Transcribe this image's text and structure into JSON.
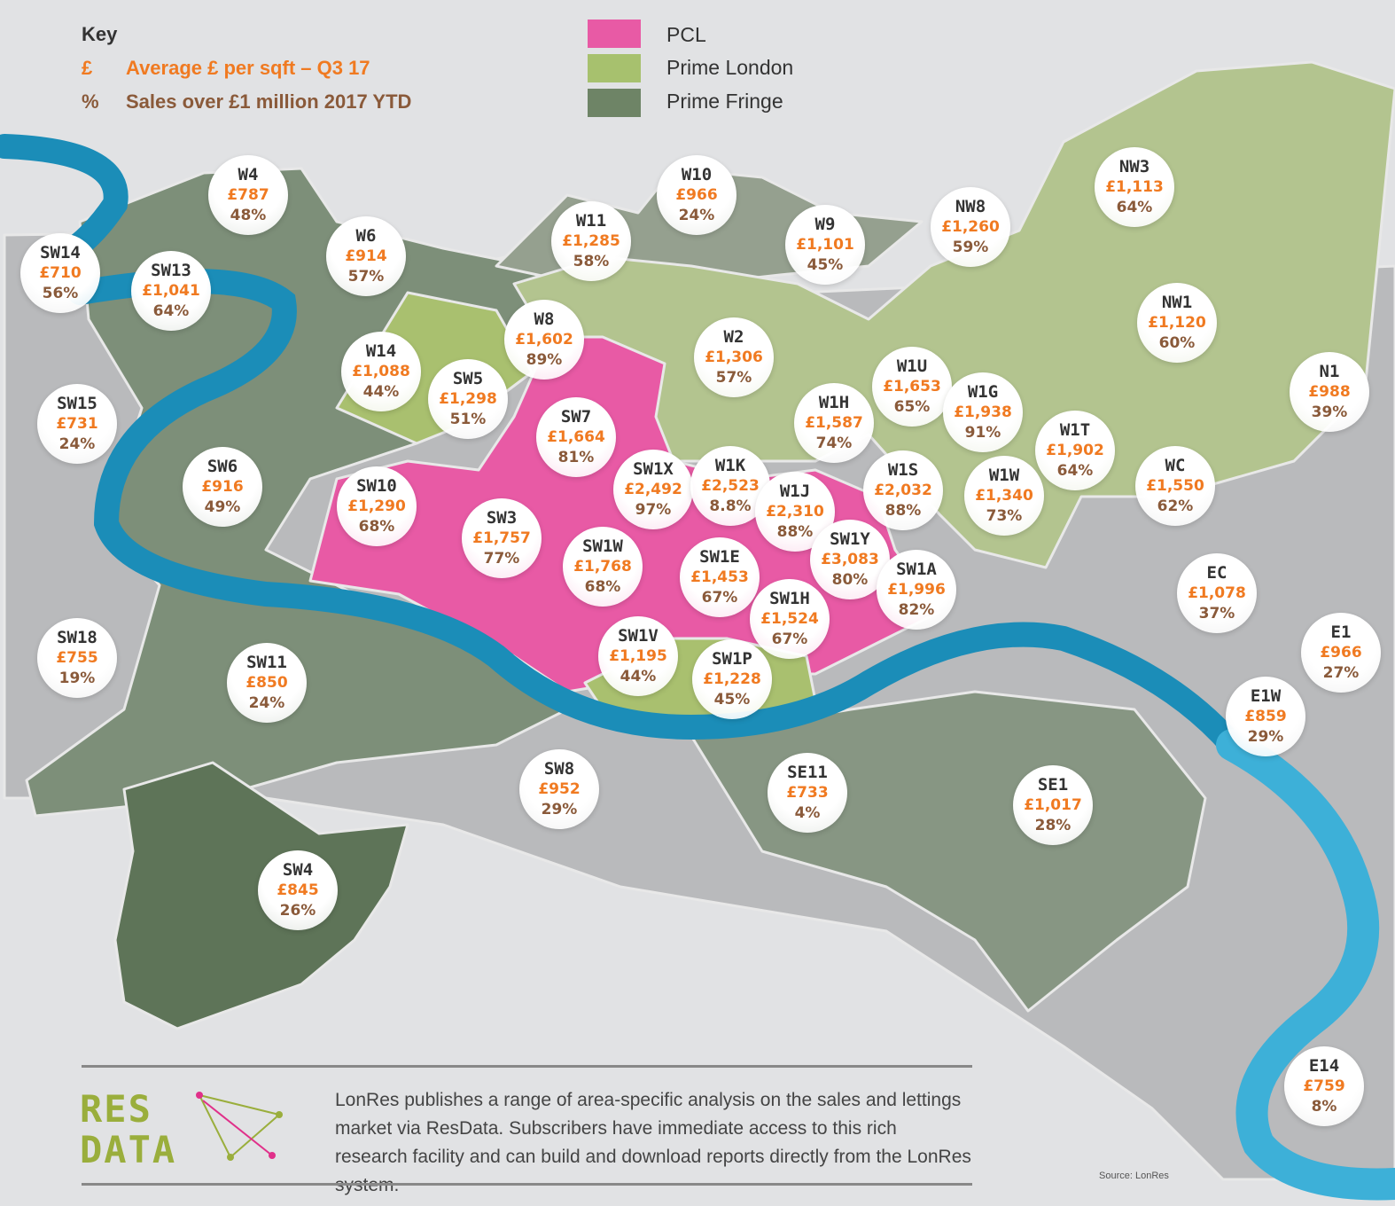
{
  "key": {
    "title": "Key",
    "rows": [
      {
        "symbol": "£",
        "label": "Average £ per sqft – Q3 17"
      },
      {
        "symbol": "%",
        "label": "Sales over £1 million 2017 YTD"
      }
    ]
  },
  "legend": [
    {
      "label": "PCL",
      "color": "#e85aa5"
    },
    {
      "label": "Prime London",
      "color": "#a7c16e"
    },
    {
      "label": "Prime Fringe",
      "color": "#6e8466"
    }
  ],
  "colors": {
    "river": "#2aa3cc",
    "price": "#f07a21",
    "share": "#8a5a3a"
  },
  "areas": [
    {
      "code": "W4",
      "price": "£787",
      "share": "48%"
    },
    {
      "code": "SW14",
      "price": "£710",
      "share": "56%"
    },
    {
      "code": "SW13",
      "price": "£1,041",
      "share": "64%"
    },
    {
      "code": "W6",
      "price": "£914",
      "share": "57%"
    },
    {
      "code": "W11",
      "price": "£1,285",
      "share": "58%"
    },
    {
      "code": "W10",
      "price": "£966",
      "share": "24%"
    },
    {
      "code": "W9",
      "price": "£1,101",
      "share": "45%"
    },
    {
      "code": "NW8",
      "price": "£1,260",
      "share": "59%"
    },
    {
      "code": "NW3",
      "price": "£1,113",
      "share": "64%"
    },
    {
      "code": "NW1",
      "price": "£1,120",
      "share": "60%"
    },
    {
      "code": "N1",
      "price": "£988",
      "share": "39%"
    },
    {
      "code": "W8",
      "price": "£1,602",
      "share": "89%"
    },
    {
      "code": "W14",
      "price": "£1,088",
      "share": "44%"
    },
    {
      "code": "SW5",
      "price": "£1,298",
      "share": "51%"
    },
    {
      "code": "W2",
      "price": "£1,306",
      "share": "57%"
    },
    {
      "code": "W1U",
      "price": "£1,653",
      "share": "65%"
    },
    {
      "code": "W1G",
      "price": "£1,938",
      "share": "91%"
    },
    {
      "code": "W1H",
      "price": "£1,587",
      "share": "74%"
    },
    {
      "code": "SW15",
      "price": "£731",
      "share": "24%"
    },
    {
      "code": "SW7",
      "price": "£1,664",
      "share": "81%"
    },
    {
      "code": "W1T",
      "price": "£1,902",
      "share": "64%"
    },
    {
      "code": "SW6",
      "price": "£916",
      "share": "49%"
    },
    {
      "code": "SW10",
      "price": "£1,290",
      "share": "68%"
    },
    {
      "code": "SW1X",
      "price": "£2,492",
      "share": "97%"
    },
    {
      "code": "W1K",
      "price": "£2,523",
      "share": "8.8%"
    },
    {
      "code": "W1J",
      "price": "£2,310",
      "share": "88%"
    },
    {
      "code": "W1S",
      "price": "£2,032",
      "share": "88%"
    },
    {
      "code": "W1W",
      "price": "£1,340",
      "share": "73%"
    },
    {
      "code": "WC",
      "price": "£1,550",
      "share": "62%"
    },
    {
      "code": "SW3",
      "price": "£1,757",
      "share": "77%"
    },
    {
      "code": "SW1W",
      "price": "£1,768",
      "share": "68%"
    },
    {
      "code": "SW1Y",
      "price": "£3,083",
      "share": "80%"
    },
    {
      "code": "SW1E",
      "price": "£1,453",
      "share": "67%"
    },
    {
      "code": "SW1A",
      "price": "£1,996",
      "share": "82%"
    },
    {
      "code": "EC",
      "price": "£1,078",
      "share": "37%"
    },
    {
      "code": "SW1H",
      "price": "£1,524",
      "share": "67%"
    },
    {
      "code": "SW18",
      "price": "£755",
      "share": "19%"
    },
    {
      "code": "SW11",
      "price": "£850",
      "share": "24%"
    },
    {
      "code": "SW1V",
      "price": "£1,195",
      "share": "44%"
    },
    {
      "code": "SW1P",
      "price": "£1,228",
      "share": "45%"
    },
    {
      "code": "E1",
      "price": "£966",
      "share": "27%"
    },
    {
      "code": "E1W",
      "price": "£859",
      "share": "29%"
    },
    {
      "code": "SW8",
      "price": "£952",
      "share": "29%"
    },
    {
      "code": "SE11",
      "price": "£733",
      "share": "4%"
    },
    {
      "code": "SE1",
      "price": "£1,017",
      "share": "28%"
    },
    {
      "code": "SW4",
      "price": "£845",
      "share": "26%"
    },
    {
      "code": "E14",
      "price": "£759",
      "share": "8%"
    }
  ],
  "footer": {
    "logo_line1": "RES",
    "logo_line2": "DATA",
    "text": "LonRes publishes a range of area-specific analysis on the sales and lettings market via ResData. Subscribers have immediate access to this rich research facility and can build and download reports directly from the LonRes system.",
    "source": "Source: LonRes"
  }
}
